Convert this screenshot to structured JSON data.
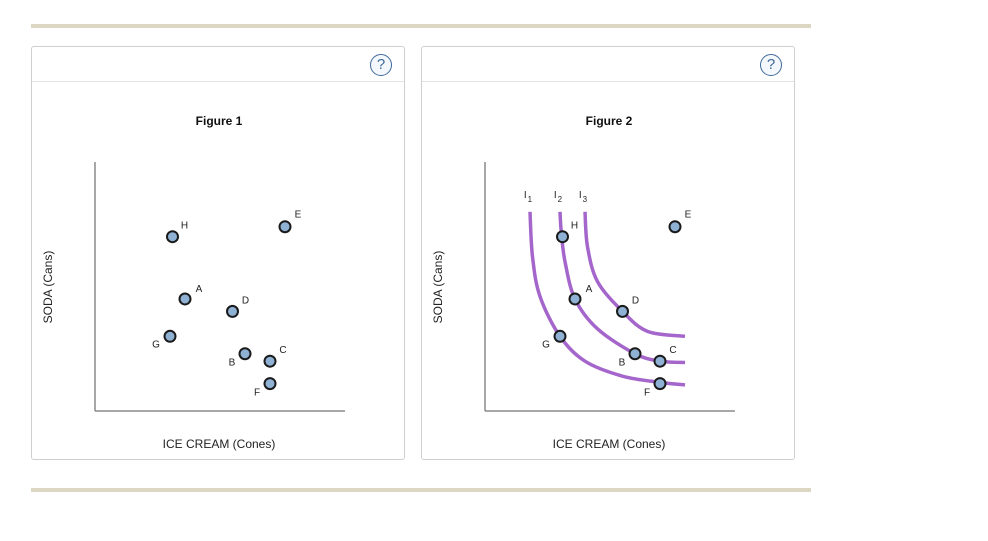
{
  "help_icon": "question-mark-icon",
  "help_label": "?",
  "colors": {
    "point_fill": "#8fb1d3",
    "curve": "#a566cc",
    "axis": "#8a8a8a",
    "rule": "#ddd6c3"
  },
  "chart_data": [
    {
      "type": "scatter",
      "title": "Figure 1",
      "xlabel": "ICE CREAM (Cones)",
      "ylabel": "SODA (Cans)",
      "points": [
        {
          "label": "H",
          "x": 3.1,
          "y": 7.0
        },
        {
          "label": "E",
          "x": 7.6,
          "y": 7.4
        },
        {
          "label": "A",
          "x": 3.6,
          "y": 4.5
        },
        {
          "label": "D",
          "x": 5.5,
          "y": 4.0
        },
        {
          "label": "G",
          "x": 3.0,
          "y": 3.0
        },
        {
          "label": "B",
          "x": 6.0,
          "y": 2.3
        },
        {
          "label": "C",
          "x": 7.0,
          "y": 2.0
        },
        {
          "label": "F",
          "x": 7.0,
          "y": 1.1
        }
      ],
      "xlim": [
        0,
        10
      ],
      "ylim": [
        0,
        10
      ],
      "grid": false
    },
    {
      "type": "line",
      "title": "Figure 2",
      "xlabel": "ICE CREAM (Cones)",
      "ylabel": "SODA (Cans)",
      "points": [
        {
          "label": "H",
          "x": 3.1,
          "y": 7.0
        },
        {
          "label": "E",
          "x": 7.6,
          "y": 7.4
        },
        {
          "label": "A",
          "x": 3.6,
          "y": 4.5
        },
        {
          "label": "D",
          "x": 5.5,
          "y": 4.0
        },
        {
          "label": "G",
          "x": 3.0,
          "y": 3.0
        },
        {
          "label": "B",
          "x": 6.0,
          "y": 2.3
        },
        {
          "label": "C",
          "x": 7.0,
          "y": 2.0
        },
        {
          "label": "F",
          "x": 7.0,
          "y": 1.1
        }
      ],
      "curves": [
        {
          "base": "I",
          "sub": "1",
          "x": [
            1.8,
            1.9,
            2.2,
            3.0,
            4.0,
            5.5,
            7.0,
            8.0
          ],
          "y": [
            8.0,
            6.2,
            4.6,
            3.0,
            2.0,
            1.4,
            1.15,
            1.05
          ]
        },
        {
          "base": "I",
          "sub": "2",
          "x": [
            3.0,
            3.05,
            3.2,
            3.6,
            4.5,
            6.0,
            7.0,
            8.0
          ],
          "y": [
            8.0,
            7.2,
            6.0,
            4.5,
            3.3,
            2.3,
            2.0,
            1.95
          ]
        },
        {
          "base": "I",
          "sub": "3",
          "x": [
            4.0,
            4.1,
            4.5,
            5.5,
            6.5,
            8.0
          ],
          "y": [
            8.0,
            6.6,
            5.2,
            4.0,
            3.2,
            3.0
          ]
        }
      ],
      "xlim": [
        0,
        10
      ],
      "ylim": [
        0,
        10
      ],
      "grid": false
    }
  ]
}
